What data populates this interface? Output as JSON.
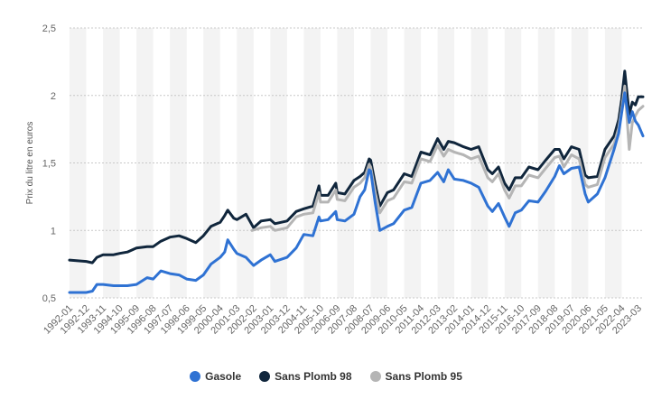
{
  "chart_data": {
    "type": "line",
    "title": "",
    "xlabel": "",
    "ylabel": "Prix du litre en euros",
    "ylim": [
      0.5,
      2.5
    ],
    "yticks": [
      "0,5",
      "1",
      "1,5",
      "2",
      "2,5"
    ],
    "ytick_values": [
      0.5,
      1,
      1.5,
      2,
      2.5
    ],
    "grid": true,
    "legend_position": "bottom",
    "x_start": "1992-01",
    "x_end": "2023-06",
    "xticks": [
      "1992-01",
      "1992-12",
      "1993-11",
      "1994-10",
      "1995-09",
      "1996-08",
      "1997-07",
      "1998-06",
      "1999-05",
      "2000-04",
      "2001-03",
      "2002-02",
      "2003-01",
      "2003-12",
      "2004-11",
      "2005-10",
      "2006-09",
      "2007-08",
      "2008-07",
      "2009-06",
      "2010-05",
      "2011-04",
      "2012-03",
      "2013-02",
      "2014-01",
      "2014-12",
      "2015-11",
      "2016-10",
      "2017-09",
      "2018-08",
      "2019-07",
      "2020-06",
      "2021-05",
      "2022-04",
      "2023-03"
    ],
    "series": [
      {
        "name": "Gasole",
        "color": "#2f72d3",
        "points": [
          [
            "1992-01",
            0.54
          ],
          [
            "1992-12",
            0.54
          ],
          [
            "1993-04",
            0.55
          ],
          [
            "1993-07",
            0.6
          ],
          [
            "1993-11",
            0.6
          ],
          [
            "1994-06",
            0.59
          ],
          [
            "1994-10",
            0.59
          ],
          [
            "1995-03",
            0.59
          ],
          [
            "1995-09",
            0.6
          ],
          [
            "1996-04",
            0.65
          ],
          [
            "1996-08",
            0.64
          ],
          [
            "1997-01",
            0.7
          ],
          [
            "1997-07",
            0.68
          ],
          [
            "1998-01",
            0.67
          ],
          [
            "1998-06",
            0.64
          ],
          [
            "1998-12",
            0.63
          ],
          [
            "1999-05",
            0.67
          ],
          [
            "1999-10",
            0.75
          ],
          [
            "2000-04",
            0.8
          ],
          [
            "2000-07",
            0.84
          ],
          [
            "2000-09",
            0.93
          ],
          [
            "2001-01",
            0.86
          ],
          [
            "2001-03",
            0.83
          ],
          [
            "2001-09",
            0.8
          ],
          [
            "2002-02",
            0.74
          ],
          [
            "2002-07",
            0.78
          ],
          [
            "2003-01",
            0.82
          ],
          [
            "2003-04",
            0.77
          ],
          [
            "2003-12",
            0.8
          ],
          [
            "2004-06",
            0.87
          ],
          [
            "2004-11",
            0.97
          ],
          [
            "2005-05",
            0.96
          ],
          [
            "2005-09",
            1.1
          ],
          [
            "2005-10",
            1.07
          ],
          [
            "2006-03",
            1.08
          ],
          [
            "2006-08",
            1.14
          ],
          [
            "2006-09",
            1.08
          ],
          [
            "2007-02",
            1.07
          ],
          [
            "2007-08",
            1.12
          ],
          [
            "2007-12",
            1.25
          ],
          [
            "2008-03",
            1.3
          ],
          [
            "2008-06",
            1.45
          ],
          [
            "2008-07",
            1.44
          ],
          [
            "2008-10",
            1.2
          ],
          [
            "2009-01",
            1.0
          ],
          [
            "2009-06",
            1.03
          ],
          [
            "2009-10",
            1.05
          ],
          [
            "2010-05",
            1.15
          ],
          [
            "2010-10",
            1.17
          ],
          [
            "2011-04",
            1.35
          ],
          [
            "2011-10",
            1.37
          ],
          [
            "2012-03",
            1.43
          ],
          [
            "2012-07",
            1.36
          ],
          [
            "2012-10",
            1.45
          ],
          [
            "2013-02",
            1.38
          ],
          [
            "2013-08",
            1.37
          ],
          [
            "2014-01",
            1.35
          ],
          [
            "2014-06",
            1.32
          ],
          [
            "2014-12",
            1.18
          ],
          [
            "2015-03",
            1.14
          ],
          [
            "2015-07",
            1.2
          ],
          [
            "2015-11",
            1.1
          ],
          [
            "2016-02",
            1.03
          ],
          [
            "2016-06",
            1.13
          ],
          [
            "2016-10",
            1.15
          ],
          [
            "2017-03",
            1.22
          ],
          [
            "2017-09",
            1.21
          ],
          [
            "2018-02",
            1.29
          ],
          [
            "2018-08",
            1.4
          ],
          [
            "2018-11",
            1.48
          ],
          [
            "2019-02",
            1.42
          ],
          [
            "2019-07",
            1.46
          ],
          [
            "2019-12",
            1.47
          ],
          [
            "2020-04",
            1.27
          ],
          [
            "2020-06",
            1.21
          ],
          [
            "2020-12",
            1.27
          ],
          [
            "2021-05",
            1.39
          ],
          [
            "2021-11",
            1.6
          ],
          [
            "2022-02",
            1.72
          ],
          [
            "2022-04",
            1.87
          ],
          [
            "2022-06",
            2.02
          ],
          [
            "2022-09",
            1.8
          ],
          [
            "2022-11",
            1.88
          ],
          [
            "2023-01",
            1.81
          ],
          [
            "2023-03",
            1.78
          ],
          [
            "2023-06",
            1.7
          ]
        ]
      },
      {
        "name": "Sans Plomb 98",
        "color": "#10263c",
        "points": [
          [
            "1992-01",
            0.78
          ],
          [
            "1992-12",
            0.77
          ],
          [
            "1993-04",
            0.76
          ],
          [
            "1993-07",
            0.8
          ],
          [
            "1993-11",
            0.82
          ],
          [
            "1994-06",
            0.82
          ],
          [
            "1994-10",
            0.83
          ],
          [
            "1995-03",
            0.84
          ],
          [
            "1995-09",
            0.87
          ],
          [
            "1996-04",
            0.88
          ],
          [
            "1996-08",
            0.88
          ],
          [
            "1997-01",
            0.92
          ],
          [
            "1997-07",
            0.95
          ],
          [
            "1998-01",
            0.96
          ],
          [
            "1998-06",
            0.94
          ],
          [
            "1998-12",
            0.91
          ],
          [
            "1999-05",
            0.96
          ],
          [
            "1999-10",
            1.03
          ],
          [
            "2000-04",
            1.06
          ],
          [
            "2000-07",
            1.11
          ],
          [
            "2000-09",
            1.15
          ],
          [
            "2001-01",
            1.09
          ],
          [
            "2001-03",
            1.08
          ],
          [
            "2001-09",
            1.12
          ],
          [
            "2002-02",
            1.02
          ],
          [
            "2002-07",
            1.07
          ],
          [
            "2003-01",
            1.08
          ],
          [
            "2003-04",
            1.05
          ],
          [
            "2003-12",
            1.07
          ],
          [
            "2004-06",
            1.14
          ],
          [
            "2004-11",
            1.16
          ],
          [
            "2005-05",
            1.18
          ],
          [
            "2005-09",
            1.33
          ],
          [
            "2005-10",
            1.26
          ],
          [
            "2006-03",
            1.26
          ],
          [
            "2006-08",
            1.35
          ],
          [
            "2006-09",
            1.28
          ],
          [
            "2007-02",
            1.27
          ],
          [
            "2007-08",
            1.37
          ],
          [
            "2007-12",
            1.4
          ],
          [
            "2008-03",
            1.43
          ],
          [
            "2008-06",
            1.53
          ],
          [
            "2008-07",
            1.52
          ],
          [
            "2008-10",
            1.34
          ],
          [
            "2009-01",
            1.18
          ],
          [
            "2009-06",
            1.28
          ],
          [
            "2009-10",
            1.3
          ],
          [
            "2010-05",
            1.42
          ],
          [
            "2010-10",
            1.4
          ],
          [
            "2011-04",
            1.58
          ],
          [
            "2011-10",
            1.56
          ],
          [
            "2012-03",
            1.68
          ],
          [
            "2012-07",
            1.6
          ],
          [
            "2012-10",
            1.66
          ],
          [
            "2013-02",
            1.65
          ],
          [
            "2013-08",
            1.62
          ],
          [
            "2014-01",
            1.6
          ],
          [
            "2014-06",
            1.62
          ],
          [
            "2014-12",
            1.45
          ],
          [
            "2015-03",
            1.42
          ],
          [
            "2015-07",
            1.47
          ],
          [
            "2015-11",
            1.35
          ],
          [
            "2016-02",
            1.3
          ],
          [
            "2016-06",
            1.39
          ],
          [
            "2016-10",
            1.39
          ],
          [
            "2017-03",
            1.47
          ],
          [
            "2017-09",
            1.45
          ],
          [
            "2018-02",
            1.52
          ],
          [
            "2018-08",
            1.6
          ],
          [
            "2018-11",
            1.6
          ],
          [
            "2019-02",
            1.53
          ],
          [
            "2019-07",
            1.62
          ],
          [
            "2019-12",
            1.6
          ],
          [
            "2020-04",
            1.41
          ],
          [
            "2020-06",
            1.39
          ],
          [
            "2020-12",
            1.4
          ],
          [
            "2021-05",
            1.6
          ],
          [
            "2021-11",
            1.7
          ],
          [
            "2022-02",
            1.82
          ],
          [
            "2022-04",
            1.97
          ],
          [
            "2022-06",
            2.18
          ],
          [
            "2022-09",
            1.86
          ],
          [
            "2022-11",
            1.95
          ],
          [
            "2023-01",
            1.93
          ],
          [
            "2023-03",
            1.99
          ],
          [
            "2023-06",
            1.99
          ]
        ]
      },
      {
        "name": "Sans Plomb 95",
        "color": "#b5b5b5",
        "points": [
          [
            "2002-01",
            1.0
          ],
          [
            "2002-07",
            1.02
          ],
          [
            "2003-01",
            1.03
          ],
          [
            "2003-04",
            1.0
          ],
          [
            "2003-12",
            1.02
          ],
          [
            "2004-06",
            1.1
          ],
          [
            "2004-11",
            1.12
          ],
          [
            "2005-05",
            1.13
          ],
          [
            "2005-09",
            1.28
          ],
          [
            "2005-10",
            1.21
          ],
          [
            "2006-03",
            1.21
          ],
          [
            "2006-08",
            1.3
          ],
          [
            "2006-09",
            1.23
          ],
          [
            "2007-02",
            1.22
          ],
          [
            "2007-08",
            1.32
          ],
          [
            "2007-12",
            1.35
          ],
          [
            "2008-03",
            1.39
          ],
          [
            "2008-06",
            1.49
          ],
          [
            "2008-07",
            1.47
          ],
          [
            "2008-10",
            1.28
          ],
          [
            "2009-01",
            1.13
          ],
          [
            "2009-06",
            1.22
          ],
          [
            "2009-10",
            1.24
          ],
          [
            "2010-05",
            1.36
          ],
          [
            "2010-10",
            1.35
          ],
          [
            "2011-04",
            1.53
          ],
          [
            "2011-10",
            1.51
          ],
          [
            "2012-03",
            1.63
          ],
          [
            "2012-07",
            1.55
          ],
          [
            "2012-10",
            1.6
          ],
          [
            "2013-02",
            1.58
          ],
          [
            "2013-08",
            1.56
          ],
          [
            "2014-01",
            1.53
          ],
          [
            "2014-06",
            1.55
          ],
          [
            "2014-12",
            1.39
          ],
          [
            "2015-03",
            1.36
          ],
          [
            "2015-07",
            1.42
          ],
          [
            "2015-11",
            1.3
          ],
          [
            "2016-02",
            1.24
          ],
          [
            "2016-06",
            1.33
          ],
          [
            "2016-10",
            1.33
          ],
          [
            "2017-03",
            1.41
          ],
          [
            "2017-09",
            1.39
          ],
          [
            "2018-02",
            1.46
          ],
          [
            "2018-08",
            1.54
          ],
          [
            "2018-11",
            1.55
          ],
          [
            "2019-02",
            1.47
          ],
          [
            "2019-07",
            1.56
          ],
          [
            "2019-12",
            1.53
          ],
          [
            "2020-04",
            1.34
          ],
          [
            "2020-06",
            1.32
          ],
          [
            "2020-12",
            1.34
          ],
          [
            "2021-05",
            1.54
          ],
          [
            "2021-11",
            1.64
          ],
          [
            "2022-02",
            1.76
          ],
          [
            "2022-04",
            1.9
          ],
          [
            "2022-06",
            2.07
          ],
          [
            "2022-09",
            1.6
          ],
          [
            "2022-11",
            1.8
          ],
          [
            "2023-01",
            1.85
          ],
          [
            "2023-03",
            1.89
          ],
          [
            "2023-06",
            1.92
          ]
        ]
      }
    ]
  }
}
